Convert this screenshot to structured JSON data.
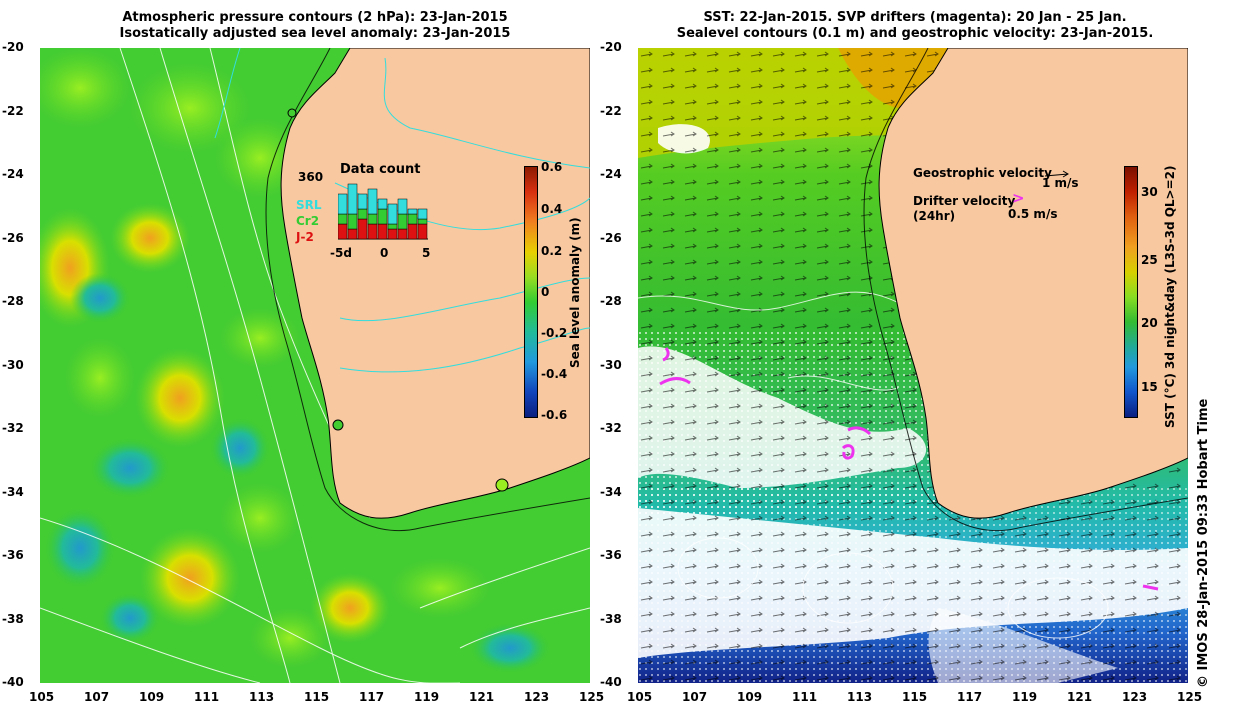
{
  "left_panel": {
    "title_line1": "Atmospheric pressure contours (2 hPa): 23-Jan-2015",
    "title_line2": "Isostatically adjusted sea level anomaly: 23-Jan-2015",
    "inset": {
      "count_label": "360",
      "title": "Data count",
      "legend": [
        {
          "label": "SRL",
          "color": "#33dddd"
        },
        {
          "label": "Cr2",
          "color": "#33cc33"
        },
        {
          "label": "J-2",
          "color": "#dd1111"
        }
      ],
      "xticks": [
        "-5d",
        "0",
        "5"
      ],
      "bars_srl": [
        4,
        6,
        3,
        5,
        2,
        4,
        3,
        1,
        2
      ],
      "bars_cr2": [
        2,
        3,
        2,
        2,
        3,
        1,
        3,
        2,
        1
      ],
      "bars_j2": [
        3,
        2,
        4,
        3,
        3,
        2,
        2,
        3,
        3
      ]
    },
    "colorbar": {
      "label": "Sea level anomaly (m)",
      "ticks": [
        "0.6",
        "0.4",
        "0.2",
        "0",
        "-0.2",
        "-0.4",
        "-0.6"
      ]
    }
  },
  "right_panel": {
    "title_line1": "SST: 22-Jan-2015. SVP drifters (magenta): 20 Jan - 25 Jan.",
    "title_line2": "Sealevel contours (0.1 m) and geostrophic velocity: 23-Jan-2015.",
    "legend": {
      "geo_label": "Geostrophic velocity",
      "geo_scale": "1 m/s",
      "drift_label": "Drifter velocity",
      "drift_sub": "(24hr)",
      "drift_scale": "0.5 m/s"
    },
    "colorbar": {
      "label": "SST (°C) 3d night&day (L3S-3d QL>=2)",
      "ticks": [
        "30",
        "25",
        "20",
        "15"
      ]
    }
  },
  "axes": {
    "yticks": [
      "-20",
      "-22",
      "-24",
      "-26",
      "-28",
      "-30",
      "-32",
      "-34",
      "-36",
      "-38",
      "-40"
    ],
    "xticks": [
      "105",
      "107",
      "109",
      "111",
      "113",
      "115",
      "117",
      "119",
      "121",
      "123",
      "125"
    ]
  },
  "credit": "© IMOS 28-Jan-2015 09:33 Hobart Time",
  "colors": {
    "land": "#f8c8a0",
    "ocean_green": "#33cc33",
    "ocean_light_green": "#66dd22",
    "warm_yellow": "#c8e000",
    "cyan": "#33bbdd",
    "white_cloud": "#ffffff",
    "deep_blue": "#1133aa",
    "magenta": "#ee33ee"
  }
}
